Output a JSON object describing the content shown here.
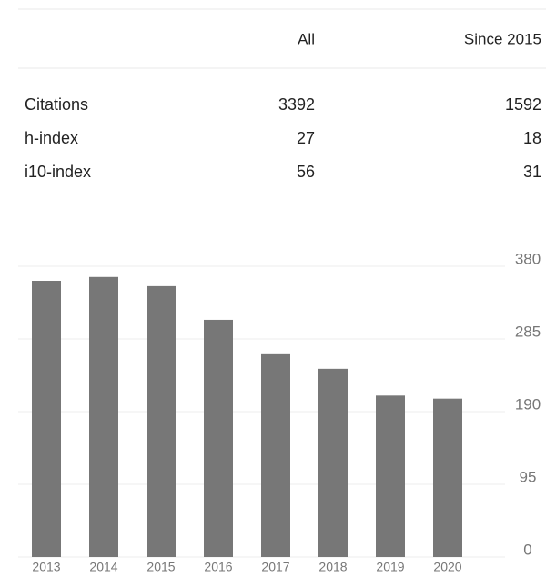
{
  "table": {
    "columns": [
      "All",
      "Since 2015"
    ],
    "rows": [
      [
        "Citations",
        3392,
        1592
      ],
      [
        "h-index",
        27,
        18
      ],
      [
        "i10-index",
        56,
        31
      ]
    ]
  },
  "chart_data": {
    "type": "bar",
    "categories": [
      "2013",
      "2014",
      "2015",
      "2016",
      "2017",
      "2018",
      "2019",
      "2020"
    ],
    "values": [
      361,
      366,
      354,
      310,
      265,
      246,
      211,
      207
    ],
    "color": "#777777",
    "ylim": [
      0,
      380
    ],
    "yticks": [
      0,
      95,
      190,
      285,
      380
    ],
    "grid": true
  }
}
